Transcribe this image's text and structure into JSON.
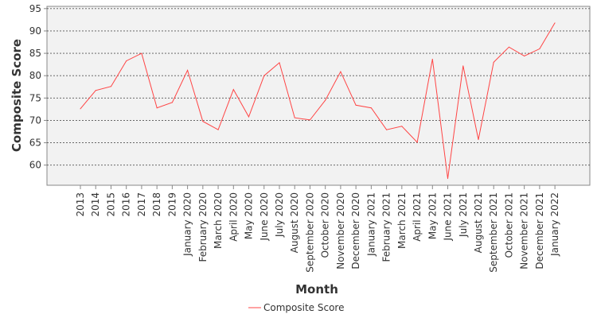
{
  "chart_data": {
    "type": "line",
    "title": "",
    "xlabel": "Month",
    "ylabel": "Composite Score",
    "ylim": [
      55.5,
      95.5
    ],
    "yticks": [
      60,
      65,
      70,
      75,
      80,
      85,
      90,
      95
    ],
    "grid": true,
    "legend_position": "bottom-center",
    "categories": [
      "2013",
      "2014",
      "2015",
      "2016",
      "2017",
      "2018",
      "2019",
      "January 2020",
      "February 2020",
      "March 2020",
      "April 2020",
      "May 2020",
      "June 2020",
      "July 2020",
      "August 2020",
      "September 2020",
      "October 2020",
      "November 2020",
      "December 2020",
      "January 2021",
      "February 2021",
      "March 2021",
      "April 2021",
      "May 2021",
      "June 2021",
      "July 2021",
      "August 2021",
      "September 2021",
      "October 2021",
      "November 2021",
      "December 2021",
      "January 2022"
    ],
    "series": [
      {
        "name": "Composite Score",
        "color": "#ff4444",
        "values": [
          72.6,
          76.7,
          77.6,
          83.3,
          85.0,
          72.8,
          74.0,
          81.2,
          69.8,
          67.9,
          76.9,
          70.8,
          80.0,
          82.9,
          70.6,
          70.1,
          74.5,
          80.9,
          73.4,
          72.8,
          67.9,
          68.7,
          65.1,
          83.7,
          57.0,
          82.2,
          65.7,
          83.0,
          86.4,
          84.4,
          86.0,
          91.8
        ]
      }
    ]
  }
}
